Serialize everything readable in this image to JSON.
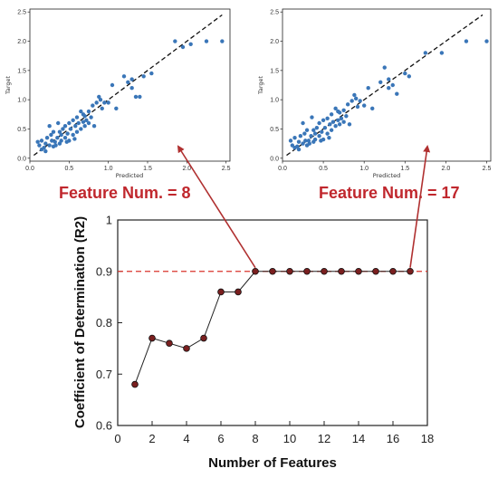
{
  "chart_data": [
    {
      "type": "scatter",
      "xlabel": "Predicted",
      "ylabel": "Target",
      "xlim": [
        0,
        2.55
      ],
      "ylim": [
        -0.05,
        2.55
      ],
      "x_ticks": [
        "0.0",
        "0.5",
        "1.0",
        "1.5",
        "2.0",
        "2.5"
      ],
      "y_ticks": [
        "0.0",
        "0.5",
        "1.0",
        "1.5",
        "2.0",
        "2.5"
      ],
      "reference_line": "y = x (dashed)",
      "point_color": "#3a76b8",
      "annotation": "Feature Num. = 8",
      "points": [
        [
          0.1,
          0.28
        ],
        [
          0.12,
          0.22
        ],
        [
          0.15,
          0.3
        ],
        [
          0.18,
          0.18
        ],
        [
          0.2,
          0.25
        ],
        [
          0.22,
          0.35
        ],
        [
          0.25,
          0.22
        ],
        [
          0.27,
          0.4
        ],
        [
          0.28,
          0.3
        ],
        [
          0.3,
          0.2
        ],
        [
          0.3,
          0.45
        ],
        [
          0.32,
          0.28
        ],
        [
          0.35,
          0.35
        ],
        [
          0.36,
          0.6
        ],
        [
          0.38,
          0.25
        ],
        [
          0.4,
          0.4
        ],
        [
          0.4,
          0.3
        ],
        [
          0.42,
          0.5
        ],
        [
          0.45,
          0.35
        ],
        [
          0.45,
          0.55
        ],
        [
          0.48,
          0.42
        ],
        [
          0.5,
          0.3
        ],
        [
          0.5,
          0.6
        ],
        [
          0.52,
          0.5
        ],
        [
          0.55,
          0.65
        ],
        [
          0.55,
          0.4
        ],
        [
          0.58,
          0.55
        ],
        [
          0.6,
          0.45
        ],
        [
          0.6,
          0.7
        ],
        [
          0.62,
          0.6
        ],
        [
          0.65,
          0.5
        ],
        [
          0.65,
          0.8
        ],
        [
          0.68,
          0.62
        ],
        [
          0.7,
          0.55
        ],
        [
          0.7,
          0.72
        ],
        [
          0.72,
          0.65
        ],
        [
          0.75,
          0.8
        ],
        [
          0.75,
          0.6
        ],
        [
          0.78,
          0.7
        ],
        [
          0.8,
          0.9
        ],
        [
          0.82,
          0.55
        ],
        [
          0.85,
          0.95
        ],
        [
          0.9,
          1.0
        ],
        [
          0.92,
          0.85
        ],
        [
          0.95,
          0.95
        ],
        [
          1.0,
          0.95
        ],
        [
          1.05,
          1.25
        ],
        [
          1.1,
          0.85
        ],
        [
          1.2,
          1.4
        ],
        [
          1.25,
          1.3
        ],
        [
          1.3,
          1.35
        ],
        [
          1.3,
          1.2
        ],
        [
          1.35,
          1.05
        ],
        [
          1.4,
          1.05
        ],
        [
          1.45,
          1.4
        ],
        [
          1.55,
          1.45
        ],
        [
          1.85,
          2.0
        ],
        [
          1.95,
          1.9
        ],
        [
          2.05,
          1.95
        ],
        [
          2.25,
          2.0
        ],
        [
          2.45,
          2.0
        ],
        [
          0.15,
          0.15
        ],
        [
          0.33,
          0.22
        ],
        [
          0.47,
          0.28
        ],
        [
          0.57,
          0.33
        ],
        [
          0.68,
          0.75
        ],
        [
          0.88,
          1.05
        ],
        [
          0.25,
          0.55
        ],
        [
          0.2,
          0.12
        ],
        [
          0.38,
          0.45
        ]
      ]
    },
    {
      "type": "scatter",
      "xlabel": "Predicted",
      "ylabel": "Target",
      "xlim": [
        0,
        2.55
      ],
      "ylim": [
        -0.05,
        2.55
      ],
      "x_ticks": [
        "0.0",
        "0.5",
        "1.0",
        "1.5",
        "2.0",
        "2.5"
      ],
      "y_ticks": [
        "0.0",
        "0.5",
        "1.0",
        "1.5",
        "2.0",
        "2.5"
      ],
      "reference_line": "y = x (dashed)",
      "point_color": "#3a76b8",
      "annotation": "Feature Num. = 17",
      "points": [
        [
          0.1,
          0.3
        ],
        [
          0.12,
          0.22
        ],
        [
          0.15,
          0.35
        ],
        [
          0.18,
          0.2
        ],
        [
          0.2,
          0.28
        ],
        [
          0.22,
          0.38
        ],
        [
          0.25,
          0.25
        ],
        [
          0.27,
          0.42
        ],
        [
          0.28,
          0.3
        ],
        [
          0.3,
          0.22
        ],
        [
          0.3,
          0.48
        ],
        [
          0.32,
          0.3
        ],
        [
          0.35,
          0.38
        ],
        [
          0.36,
          0.7
        ],
        [
          0.38,
          0.28
        ],
        [
          0.4,
          0.42
        ],
        [
          0.4,
          0.32
        ],
        [
          0.42,
          0.52
        ],
        [
          0.45,
          0.38
        ],
        [
          0.45,
          0.6
        ],
        [
          0.48,
          0.45
        ],
        [
          0.5,
          0.32
        ],
        [
          0.5,
          0.65
        ],
        [
          0.52,
          0.52
        ],
        [
          0.55,
          0.68
        ],
        [
          0.55,
          0.42
        ],
        [
          0.58,
          0.58
        ],
        [
          0.6,
          0.48
        ],
        [
          0.6,
          0.75
        ],
        [
          0.62,
          0.62
        ],
        [
          0.65,
          0.55
        ],
        [
          0.65,
          0.85
        ],
        [
          0.68,
          0.65
        ],
        [
          0.7,
          0.58
        ],
        [
          0.7,
          0.78
        ],
        [
          0.72,
          0.68
        ],
        [
          0.75,
          0.82
        ],
        [
          0.75,
          0.62
        ],
        [
          0.78,
          0.72
        ],
        [
          0.8,
          0.92
        ],
        [
          0.82,
          0.58
        ],
        [
          0.85,
          0.98
        ],
        [
          0.9,
          1.02
        ],
        [
          0.92,
          0.88
        ],
        [
          0.95,
          0.98
        ],
        [
          1.0,
          0.9
        ],
        [
          1.05,
          1.2
        ],
        [
          1.1,
          0.85
        ],
        [
          1.2,
          1.3
        ],
        [
          1.25,
          1.55
        ],
        [
          1.3,
          1.35
        ],
        [
          1.3,
          1.2
        ],
        [
          1.35,
          1.25
        ],
        [
          1.4,
          1.1
        ],
        [
          1.5,
          1.45
        ],
        [
          1.55,
          1.4
        ],
        [
          1.75,
          1.8
        ],
        [
          1.95,
          1.8
        ],
        [
          2.25,
          2.0
        ],
        [
          2.5,
          2.0
        ],
        [
          0.15,
          0.18
        ],
        [
          0.33,
          0.25
        ],
        [
          0.47,
          0.3
        ],
        [
          0.57,
          0.35
        ],
        [
          0.68,
          0.8
        ],
        [
          0.88,
          1.08
        ],
        [
          0.25,
          0.6
        ],
        [
          0.2,
          0.15
        ],
        [
          0.38,
          0.48
        ]
      ]
    },
    {
      "type": "line",
      "xlabel": "Number of Features",
      "ylabel": "Coefficient of Determination (R2)",
      "xlim": [
        0,
        18
      ],
      "ylim": [
        0.6,
        1
      ],
      "x_ticks": [
        "0",
        "2",
        "4",
        "6",
        "8",
        "10",
        "12",
        "14",
        "16",
        "18"
      ],
      "y_ticks": [
        "0.6",
        "0.7",
        "0.8",
        "0.9",
        "1"
      ],
      "reference_line": "y = 0.9 (red dashed)",
      "x": [
        1,
        2,
        3,
        4,
        5,
        6,
        7,
        8,
        9,
        10,
        11,
        12,
        13,
        14,
        15,
        16,
        17
      ],
      "y": [
        0.68,
        0.77,
        0.76,
        0.75,
        0.77,
        0.86,
        0.86,
        0.9,
        0.9,
        0.9,
        0.9,
        0.9,
        0.9,
        0.9,
        0.9,
        0.9,
        0.9
      ],
      "colors": {
        "line": "#222222",
        "marker_fill": "#7a1f1f",
        "reference": "#d9342b",
        "arrow": "#b03030"
      }
    }
  ]
}
